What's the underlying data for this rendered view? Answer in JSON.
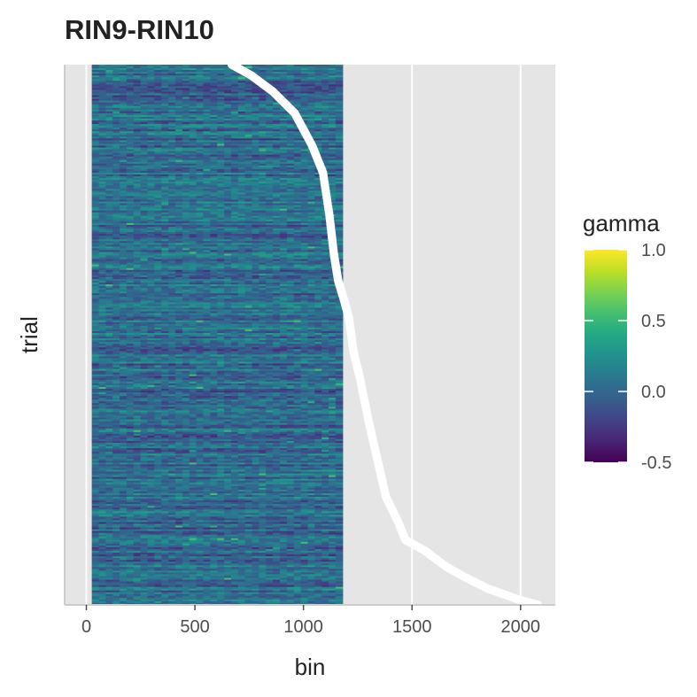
{
  "chart_data": {
    "type": "heatmap",
    "title": "RIN9-RIN10",
    "xlabel": "bin",
    "ylabel": "trial",
    "xlim": [
      -100,
      2160
    ],
    "x_ticks": [
      0,
      500,
      1000,
      1500,
      2000
    ],
    "heatmap": {
      "x_start": 25,
      "x_end": 1180,
      "n_trials": 300,
      "value_range": [
        -0.5,
        1.0
      ],
      "typical_range": [
        -0.35,
        0.55
      ]
    },
    "trial_end_markers": {
      "color": "#ffffff",
      "points": [
        {
          "trial_frac": 0.0,
          "bin": 670
        },
        {
          "trial_frac": 0.02,
          "bin": 760
        },
        {
          "trial_frac": 0.05,
          "bin": 860
        },
        {
          "trial_frac": 0.09,
          "bin": 960
        },
        {
          "trial_frac": 0.15,
          "bin": 1040
        },
        {
          "trial_frac": 0.2,
          "bin": 1090
        },
        {
          "trial_frac": 0.28,
          "bin": 1120
        },
        {
          "trial_frac": 0.35,
          "bin": 1140
        },
        {
          "trial_frac": 0.4,
          "bin": 1160
        },
        {
          "trial_frac": 0.44,
          "bin": 1190
        },
        {
          "trial_frac": 0.47,
          "bin": 1210
        },
        {
          "trial_frac": 0.53,
          "bin": 1230
        },
        {
          "trial_frac": 0.58,
          "bin": 1260
        },
        {
          "trial_frac": 0.66,
          "bin": 1300
        },
        {
          "trial_frac": 0.73,
          "bin": 1340
        },
        {
          "trial_frac": 0.8,
          "bin": 1380
        },
        {
          "trial_frac": 0.85,
          "bin": 1440
        },
        {
          "trial_frac": 0.88,
          "bin": 1470
        },
        {
          "trial_frac": 0.9,
          "bin": 1560
        },
        {
          "trial_frac": 0.93,
          "bin": 1660
        },
        {
          "trial_frac": 0.95,
          "bin": 1750
        },
        {
          "trial_frac": 0.97,
          "bin": 1850
        },
        {
          "trial_frac": 0.99,
          "bin": 1990
        },
        {
          "trial_frac": 1.0,
          "bin": 2080
        }
      ]
    },
    "legend": {
      "title": "gamma",
      "placement": "right",
      "breaks": [
        1.0,
        0.5,
        0.0,
        -0.5
      ],
      "break_labels": [
        "1.0",
        "0.5",
        "0.0",
        "-0.5"
      ],
      "colormap": "viridis"
    },
    "background": "#e5e5e5",
    "grid": true
  }
}
